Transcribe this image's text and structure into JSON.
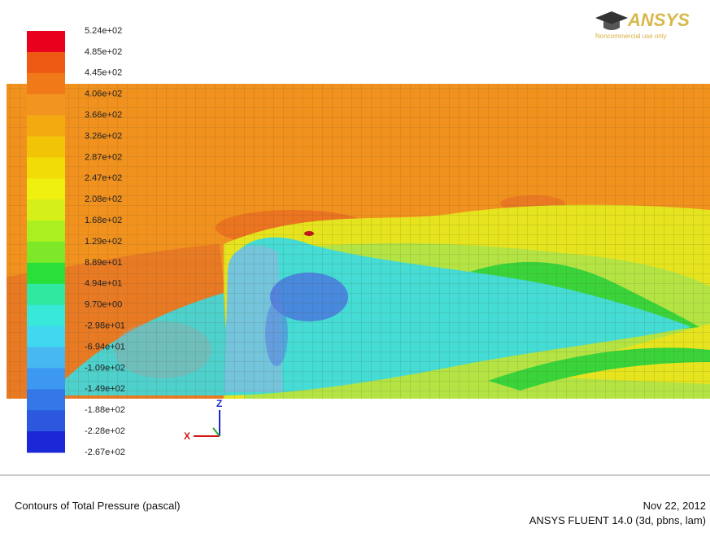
{
  "logo": {
    "brand": "ANSYS",
    "note": "Noncommercial use only"
  },
  "legend": {
    "labels": [
      "5.24e+02",
      "4.85e+02",
      "4.45e+02",
      "4.06e+02",
      "3.66e+02",
      "3.26e+02",
      "2.87e+02",
      "2.47e+02",
      "2.08e+02",
      "1.68e+02",
      "1.29e+02",
      "8.89e+01",
      "4.94e+01",
      "9.70e+00",
      "-2.98e+01",
      "-6.94e+01",
      "-1.09e+02",
      "-1.49e+02",
      "-1.88e+02",
      "-2.28e+02",
      "-2.67e+02"
    ],
    "colors": [
      "#e8001c",
      "#ee5a14",
      "#f07a18",
      "#f29420",
      "#f2aa10",
      "#f2c408",
      "#f2dc08",
      "#f0f010",
      "#d4f018",
      "#aaf020",
      "#7ce828",
      "#28e038",
      "#30e8a0",
      "#38e8d8",
      "#40d8f0",
      "#48b8f0",
      "#3c98f0",
      "#3478e8",
      "#2c58e0",
      "#1c28d8"
    ]
  },
  "axes": {
    "z": "Z",
    "x": "X"
  },
  "footer": {
    "title": "Contours of Total Pressure (pascal)",
    "date": "Nov 22, 2012",
    "version": "ANSYS FLUENT 14.0 (3d, pbns, lam)"
  }
}
